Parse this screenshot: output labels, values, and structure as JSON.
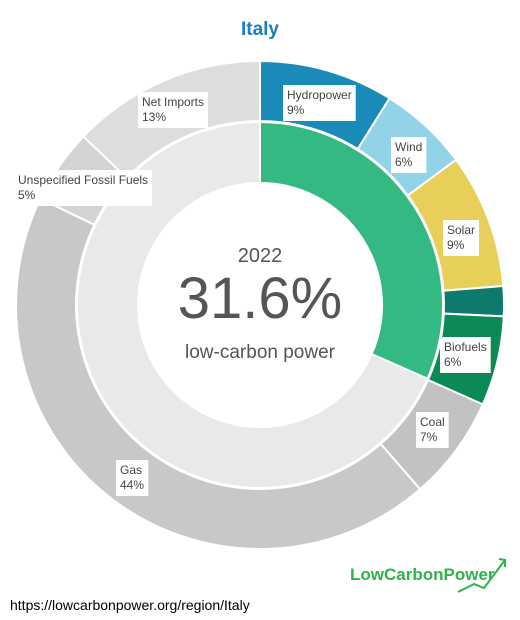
{
  "chart_data": {
    "type": "donut",
    "title": "Italy",
    "categories": [
      "Hydropower",
      "Wind",
      "Solar",
      null,
      "Biofuels",
      "Coal",
      "Gas",
      "Unspecified Fossil Fuels",
      "Net Imports"
    ],
    "values": [
      9,
      6,
      9,
      2,
      6,
      7,
      44,
      5,
      13
    ],
    "value_labels": [
      "9%",
      "6%",
      "9%",
      null,
      "6%",
      "7%",
      "44%",
      "5%",
      "13%"
    ],
    "colors": [
      "#1a8bb8",
      "#93d3e8",
      "#e8cf5a",
      "#0e7a6e",
      "#0b8a55",
      "#c2c2c2",
      "#c8c8c8",
      "#d3d3d3",
      "#dddddd"
    ],
    "inner": {
      "values": [
        31.6,
        68.4
      ],
      "colors": [
        "#35b983",
        "#e9e9e9"
      ]
    },
    "center": {
      "year": "2022",
      "value": 31.6,
      "value_label": "31.6%",
      "label": "low-carbon power"
    }
  },
  "footer": {
    "url": "https://lowcarbonpower.org/region/Italy",
    "brand": "LowCarbonPower"
  }
}
